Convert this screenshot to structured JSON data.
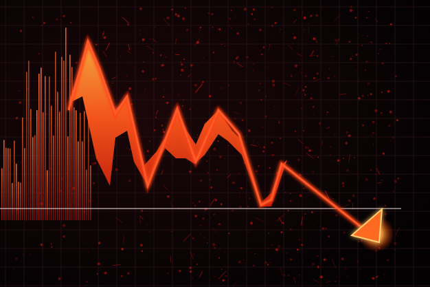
{
  "image": {
    "subject": "falling-market-line-with-downward-arrow",
    "colors": {
      "background": "#070304",
      "grid": "#2a1418",
      "line_bright": "#ff4a1c",
      "line_glow": "#ff2a00",
      "fill_top": "#ffb040",
      "fill_bottom": "#c21807",
      "bars": "#e0301a",
      "splatter": "#b3120c",
      "baseline": "#e8d8d8",
      "arrow_tip": "#ffd070"
    }
  }
}
